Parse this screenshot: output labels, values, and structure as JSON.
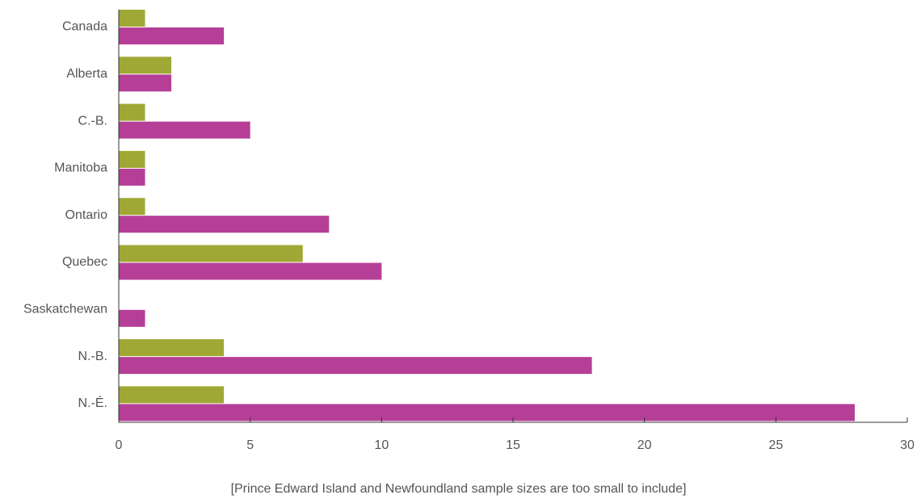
{
  "chart_data": {
    "type": "bar",
    "orientation": "horizontal",
    "categories": [
      "Canada",
      "Alberta",
      "C.-B.",
      "Manitoba",
      "Ontario",
      "Quebec",
      "Saskatchewan",
      "N.-B.",
      "N.-É."
    ],
    "series": [
      {
        "color": "#a0a835",
        "values": [
          1,
          2,
          1,
          1,
          1,
          7,
          0,
          4,
          4
        ]
      },
      {
        "color": "#b53f97",
        "values": [
          4,
          2,
          5,
          1,
          8,
          10,
          1,
          18,
          28
        ]
      }
    ],
    "xlim": [
      0,
      30
    ],
    "xticks": [
      0,
      5,
      10,
      15,
      20,
      25,
      30
    ],
    "grid": false,
    "legend": "none"
  },
  "footnote": "[Prince Edward Island and Newfoundland sample sizes are too small to include]"
}
